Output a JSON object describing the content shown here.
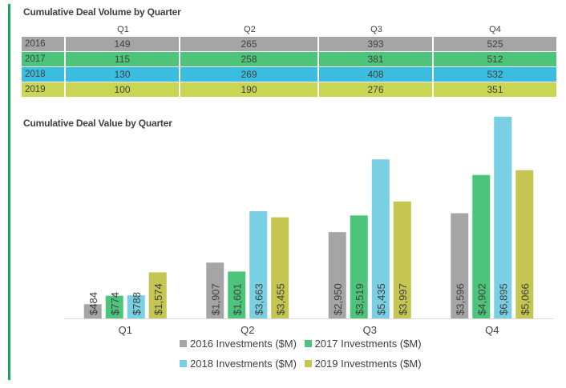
{
  "colors": {
    "accent": "#1fa25a",
    "2016": "#a5a5a5",
    "2017": "#4cc57a",
    "2018": "#78d0e2",
    "2019": "#c5c551",
    "table_2016": "#a5a5a5",
    "table_2017": "#4cc57a",
    "table_2018": "#3bbde0",
    "table_2019": "#c8d653"
  },
  "volume_table": {
    "title": "Cumulative Deal Volume by Quarter",
    "columns": [
      "",
      "Q1",
      "Q2",
      "Q3",
      "Q4"
    ],
    "rows": [
      {
        "year": "2016",
        "values": [
          "149",
          "265",
          "393",
          "525"
        ]
      },
      {
        "year": "2017",
        "values": [
          "115",
          "258",
          "381",
          "512"
        ]
      },
      {
        "year": "2018",
        "values": [
          "130",
          "269",
          "408",
          "532"
        ]
      },
      {
        "year": "2019",
        "values": [
          "100",
          "190",
          "276",
          "351"
        ]
      }
    ]
  },
  "chart_data": [
    {
      "type": "table",
      "title": "Cumulative Deal Volume by Quarter",
      "categories": [
        "Q1",
        "Q2",
        "Q3",
        "Q4"
      ],
      "series": [
        {
          "name": "2016",
          "values": [
            149,
            265,
            393,
            525
          ]
        },
        {
          "name": "2017",
          "values": [
            115,
            258,
            381,
            512
          ]
        },
        {
          "name": "2018",
          "values": [
            130,
            269,
            408,
            532
          ]
        },
        {
          "name": "2019",
          "values": [
            100,
            190,
            276,
            351
          ]
        }
      ]
    },
    {
      "type": "bar",
      "title": "Cumulative Deal Value by Quarter",
      "categories": [
        "Q1",
        "Q2",
        "Q3",
        "Q4"
      ],
      "series": [
        {
          "name": "2016 Investments ($M)",
          "values": [
            484,
            1907,
            2950,
            3596
          ],
          "labels": [
            "$484",
            "$1,907",
            "$2,950",
            "$3,596"
          ]
        },
        {
          "name": "2017 Investments ($M)",
          "values": [
            774,
            1601,
            3519,
            4902
          ],
          "labels": [
            "$774",
            "$1,601",
            "$3,519",
            "$4,902"
          ]
        },
        {
          "name": "2018 Investments ($M)",
          "values": [
            788,
            3663,
            5435,
            6895
          ],
          "labels": [
            "$788",
            "$3,663",
            "$5,435",
            "$6,895"
          ]
        },
        {
          "name": "2019 Investments ($M)",
          "values": [
            1574,
            3455,
            3997,
            5066
          ],
          "labels": [
            "$1,574",
            "$3,455",
            "$3,997",
            "$5,066"
          ]
        }
      ],
      "xlabel": "",
      "ylabel": "",
      "ylim": [
        0,
        7000
      ],
      "grid": false,
      "legend": "bottom"
    }
  ],
  "legend": [
    {
      "label": "2016 Investments ($M)",
      "key": "2016"
    },
    {
      "label": "2017 Investments ($M)",
      "key": "2017"
    },
    {
      "label": "2018 Investments ($M)",
      "key": "2018"
    },
    {
      "label": "2019 Investments ($M)",
      "key": "2019"
    }
  ]
}
